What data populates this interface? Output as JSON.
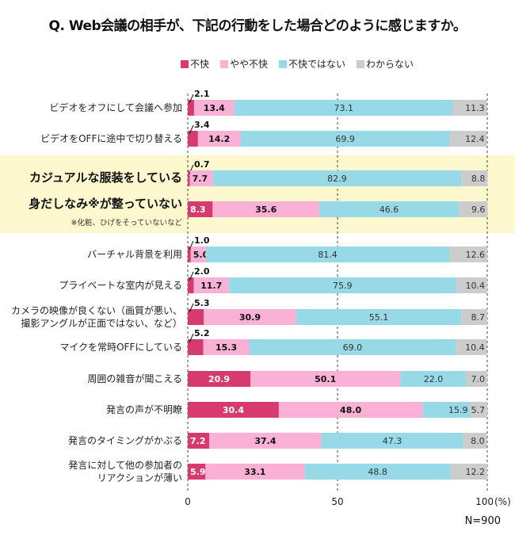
{
  "title": "Q. Web会議の相手が、下記の行動をした場合どのように感じますか。",
  "sample_size": "N=900",
  "chart_data": {
    "type": "bar",
    "orientation": "horizontal-stacked-100",
    "title": "Q. Web会議の相手が、下記の行動をした場合どのように感じますか。",
    "xlabel": "(%)",
    "ylabel": "",
    "xlim": [
      0,
      100
    ],
    "x_ticks": [
      "0",
      "50",
      "100"
    ],
    "x_unit": "(%)",
    "grid": "dashed vertical at 0, 50, 100",
    "legend_position": "top",
    "legend": [
      {
        "name": "不快",
        "color": "#d63a6e"
      },
      {
        "name": "やや不快",
        "color": "#fbb1d6"
      },
      {
        "name": "不快ではない",
        "color": "#97d9e6"
      },
      {
        "name": "わからない",
        "color": "#cccccc"
      }
    ],
    "categories": [
      {
        "label": "ビデオをオフにして会議へ参加",
        "highlight": false
      },
      {
        "label": "ビデオをOFFに途中で切り替える",
        "highlight": false
      },
      {
        "label": "カジュアルな服装をしている",
        "highlight": true
      },
      {
        "label": "身だしなみ※が整っていない",
        "highlight": true,
        "note": "※化粧、ひげをそっていないなど"
      },
      {
        "label": "バーチャル背景を利用",
        "highlight": false
      },
      {
        "label": "プライベートな室内が見える",
        "highlight": false
      },
      {
        "label": "カメラの映像が良くない（画質が悪い、\n撮影アングルが正面ではない、など）",
        "highlight": false
      },
      {
        "label": "マイクを常時OFFにしている",
        "highlight": false
      },
      {
        "label": "周囲の雑音が聞こえる",
        "highlight": false
      },
      {
        "label": "発言の声が不明瞭",
        "highlight": false
      },
      {
        "label": "発言のタイミングがかぶる",
        "highlight": false
      },
      {
        "label": "発言に対して他の参加者の\nリアクションが薄い",
        "highlight": false
      }
    ],
    "series": [
      {
        "name": "不快",
        "values": [
          2.1,
          3.4,
          0.7,
          8.3,
          1.0,
          2.0,
          5.3,
          5.2,
          20.9,
          30.4,
          7.2,
          5.9
        ]
      },
      {
        "name": "やや不快",
        "values": [
          13.4,
          14.2,
          7.7,
          35.6,
          5.0,
          11.7,
          30.9,
          15.3,
          50.1,
          48.0,
          37.4,
          33.1
        ]
      },
      {
        "name": "不快ではない",
        "values": [
          73.1,
          69.9,
          82.9,
          46.6,
          81.4,
          75.9,
          55.1,
          69.0,
          22.0,
          15.9,
          47.3,
          48.8
        ]
      },
      {
        "name": "わからない",
        "values": [
          11.3,
          12.4,
          8.8,
          9.6,
          12.6,
          10.4,
          8.7,
          10.4,
          7.0,
          5.7,
          8.0,
          12.2
        ]
      }
    ]
  }
}
